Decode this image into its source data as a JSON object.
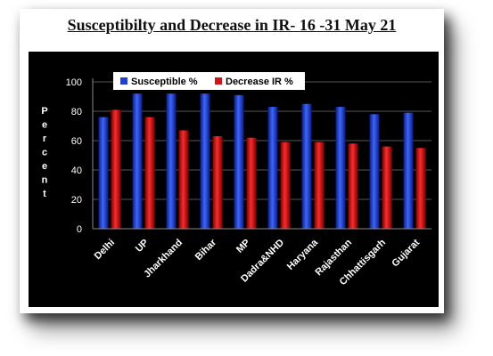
{
  "slide": {
    "title": "Susceptibilty and Decrease in IR- 16 -31 May 21"
  },
  "colors": {
    "background": "#000000",
    "susceptible": "#1f3fd8",
    "decrease": "#d41414",
    "text": "#ffffff",
    "legend_bg": "#ffffff"
  },
  "chart_data": {
    "type": "bar",
    "title": "Susceptibilty and Decrease in IR- 16 -31 May 21",
    "ylabel": "Percent",
    "xlabel": "",
    "categories": [
      "Delhi",
      "UP",
      "Jharkhand",
      "Bihar",
      "MP",
      "Dadra&NHD",
      "Haryana",
      "Rajasthan",
      "Chhattisgarh",
      "Gujarat"
    ],
    "series": [
      {
        "name": "Susceptible %",
        "values": [
          76,
          92,
          92,
          92,
          91,
          83,
          85,
          83,
          78,
          79
        ]
      },
      {
        "name": "Decrease IR %",
        "values": [
          81,
          76,
          67,
          63,
          62,
          59,
          59,
          58,
          56,
          55
        ]
      }
    ],
    "ylim": [
      0,
      100
    ],
    "yticks": [
      "0",
      "20",
      "40",
      "60",
      "80",
      "100"
    ],
    "grid": true,
    "legend_position": "top"
  }
}
